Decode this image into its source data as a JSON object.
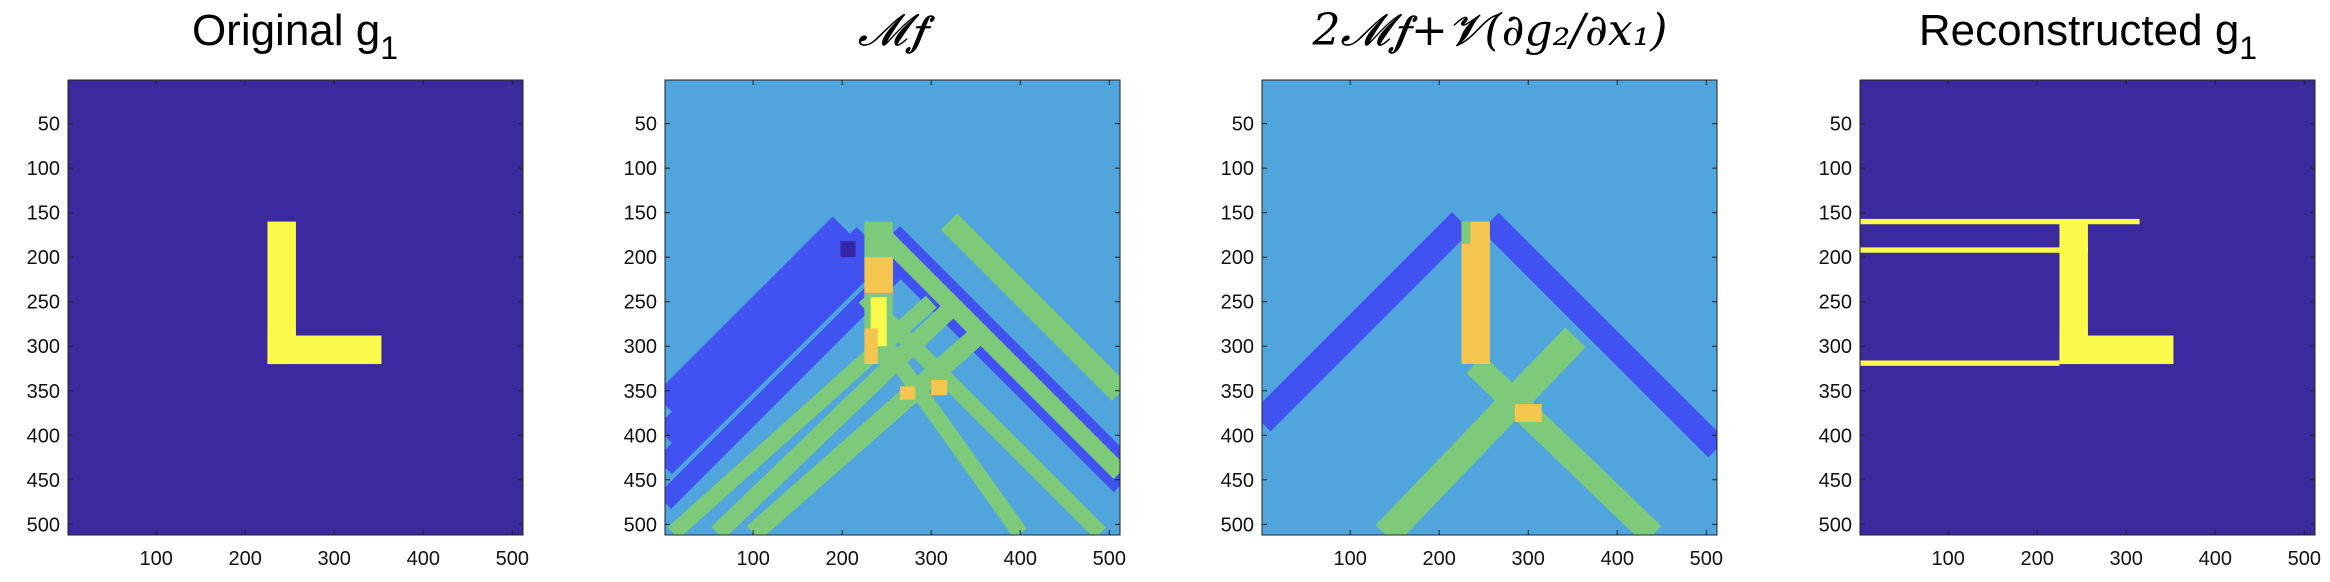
{
  "figure": {
    "panels": [
      {
        "title": "Original g",
        "title_sub": "1",
        "title_style": "text"
      },
      {
        "title": "𝓜𝒇",
        "title_style": "math"
      },
      {
        "title": "2𝓜𝒇+𝓥(∂g₂/∂x₁)",
        "title_style": "math"
      },
      {
        "title": "Reconstructed g",
        "title_sub": "1",
        "title_style": "text"
      }
    ]
  },
  "colors": {
    "background_dark": "#3b2a9e",
    "background_mid": "#50a5dc",
    "blue": "#4053f0",
    "dark_blue": "#3626a6",
    "green": "#7dca7a",
    "orange": "#f4c650",
    "yellow": "#fafa4a"
  },
  "chart_data": [
    {
      "type": "heatmap",
      "title": "Original g1",
      "xlim": [
        1,
        512
      ],
      "ylim": [
        512,
        1
      ],
      "xticks": [
        100,
        200,
        300,
        400,
        500
      ],
      "yticks": [
        50,
        100,
        150,
        200,
        250,
        300,
        350,
        400,
        450,
        500
      ],
      "background": "#3b2a9e",
      "shapes": [
        {
          "kind": "rect",
          "x": [
            225,
            257
          ],
          "y": [
            160,
            320
          ],
          "color": "#fafa4a"
        },
        {
          "kind": "rect",
          "x": [
            225,
            353
          ],
          "y": [
            288,
            320
          ],
          "color": "#fafa4a"
        }
      ]
    },
    {
      "type": "heatmap",
      "title": "Mf",
      "xlim": [
        1,
        512
      ],
      "ylim": [
        512,
        1
      ],
      "xticks": [
        100,
        200,
        300,
        400,
        500
      ],
      "yticks": [
        50,
        100,
        150,
        200,
        250,
        300,
        350,
        400,
        450,
        500
      ],
      "background": "#50a5dc",
      "shapes": [
        {
          "kind": "band",
          "from": [
            200,
            165
          ],
          "to": [
            0,
            365
          ],
          "width": 30,
          "color": "#4053f0"
        },
        {
          "kind": "band",
          "from": [
            225,
            175
          ],
          "to": [
            0,
            400
          ],
          "width": 25,
          "color": "#4053f0"
        },
        {
          "kind": "band",
          "from": [
            240,
            195
          ],
          "to": [
            0,
            435
          ],
          "width": 25,
          "color": "#4053f0"
        },
        {
          "kind": "band",
          "from": [
            260,
            215
          ],
          "to": [
            0,
            475
          ],
          "width": 22,
          "color": "#4053f0"
        },
        {
          "kind": "band",
          "from": [
            230,
            175
          ],
          "to": [
            512,
            457
          ],
          "width": 20,
          "color": "#4053f0"
        },
        {
          "kind": "band",
          "from": [
            255,
            175
          ],
          "to": [
            512,
            432
          ],
          "width": 28,
          "color": "#4053f0"
        },
        {
          "kind": "band",
          "from": [
            320,
            160
          ],
          "to": [
            512,
            352
          ],
          "width": 26,
          "color": "#7dca7a"
        },
        {
          "kind": "band",
          "from": [
            245,
            175
          ],
          "to": [
            512,
            442
          ],
          "width": 20,
          "color": "#7dca7a"
        },
        {
          "kind": "band",
          "from": [
            225,
            245
          ],
          "to": [
            490,
            510
          ],
          "width": 18,
          "color": "#7dca7a"
        },
        {
          "kind": "band",
          "from": [
            350,
            290
          ],
          "to": [
            100,
            510
          ],
          "width": 22,
          "color": "#7dca7a"
        },
        {
          "kind": "band",
          "from": [
            330,
            250
          ],
          "to": [
            60,
            510
          ],
          "width": 20,
          "color": "#7dca7a"
        },
        {
          "kind": "band",
          "from": [
            300,
            250
          ],
          "to": [
            10,
            510
          ],
          "width": 18,
          "color": "#7dca7a"
        },
        {
          "kind": "band",
          "from": [
            250,
            300
          ],
          "to": [
            400,
            510
          ],
          "width": 18,
          "color": "#7dca7a"
        },
        {
          "kind": "rect",
          "x": [
            225,
            257
          ],
          "y": [
            160,
            320
          ],
          "color": "#7dca7a"
        },
        {
          "kind": "rect",
          "x": [
            232,
            250
          ],
          "y": [
            245,
            300
          ],
          "color": "#fafa4a"
        },
        {
          "kind": "rect",
          "x": [
            225,
            257
          ],
          "y": [
            200,
            240
          ],
          "color": "#f4c650"
        },
        {
          "kind": "rect",
          "x": [
            225,
            240
          ],
          "y": [
            280,
            320
          ],
          "color": "#f4c650"
        },
        {
          "kind": "rect",
          "x": [
            198,
            215
          ],
          "y": [
            182,
            200
          ],
          "color": "#3626a6"
        },
        {
          "kind": "rect",
          "x": [
            265,
            282
          ],
          "y": [
            345,
            360
          ],
          "color": "#f4c650"
        },
        {
          "kind": "rect",
          "x": [
            300,
            318
          ],
          "y": [
            338,
            355
          ],
          "color": "#f4c650"
        }
      ]
    },
    {
      "type": "heatmap",
      "title": "2Mf+V(dg2/dx1)",
      "xlim": [
        1,
        512
      ],
      "ylim": [
        512,
        1
      ],
      "xticks": [
        100,
        200,
        300,
        400,
        500
      ],
      "yticks": [
        50,
        100,
        150,
        200,
        250,
        300,
        350,
        400,
        450,
        500
      ],
      "background": "#50a5dc",
      "shapes": [
        {
          "kind": "band",
          "from": [
            225,
            160
          ],
          "to": [
            0,
            385
          ],
          "width": 30,
          "color": "#4053f0"
        },
        {
          "kind": "band",
          "from": [
            257,
            160
          ],
          "to": [
            512,
            415
          ],
          "width": 28,
          "color": "#4053f0"
        },
        {
          "kind": "band",
          "from": [
            353,
            290
          ],
          "to": [
            140,
            512
          ],
          "width": 32,
          "color": "#7dca7a"
        },
        {
          "kind": "band",
          "from": [
            240,
            320
          ],
          "to": [
            440,
            512
          ],
          "width": 28,
          "color": "#7dca7a"
        },
        {
          "kind": "rect",
          "x": [
            225,
            257
          ],
          "y": [
            160,
            320
          ],
          "color": "#f4c650"
        },
        {
          "kind": "rect",
          "x": [
            225,
            235
          ],
          "y": [
            160,
            185
          ],
          "color": "#7dca7a"
        },
        {
          "kind": "rect",
          "x": [
            285,
            315
          ],
          "y": [
            365,
            385
          ],
          "color": "#f4c650"
        }
      ]
    },
    {
      "type": "heatmap",
      "title": "Reconstructed g1",
      "xlim": [
        1,
        512
      ],
      "ylim": [
        512,
        1
      ],
      "xticks": [
        100,
        200,
        300,
        400,
        500
      ],
      "yticks": [
        50,
        100,
        150,
        200,
        250,
        300,
        350,
        400,
        450,
        500
      ],
      "background": "#3b2a9e",
      "shapes": [
        {
          "kind": "rect",
          "x": [
            225,
            257
          ],
          "y": [
            160,
            320
          ],
          "color": "#fafa4a"
        },
        {
          "kind": "rect",
          "x": [
            225,
            353
          ],
          "y": [
            288,
            320
          ],
          "color": "#fafa4a"
        },
        {
          "kind": "rect",
          "x": [
            1,
            315
          ],
          "y": [
            157,
            163
          ],
          "color": "#fafa4a"
        },
        {
          "kind": "rect",
          "x": [
            1,
            257
          ],
          "y": [
            189,
            195
          ],
          "color": "#fafa4a"
        },
        {
          "kind": "rect",
          "x": [
            1,
            225
          ],
          "y": [
            316,
            322
          ],
          "color": "#fafa4a"
        }
      ]
    }
  ]
}
